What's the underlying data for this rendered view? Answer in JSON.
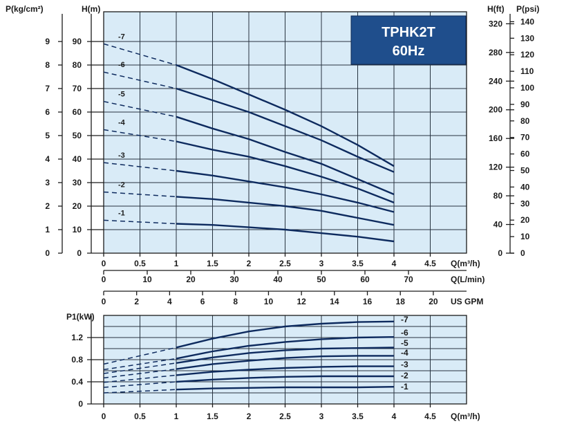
{
  "title_box": {
    "line1": "TPHK2T",
    "line2": "60Hz",
    "bg": "#1f4e8c"
  },
  "colors": {
    "plot_bg": "#d9ebf7",
    "curve": "#0d2a5e"
  },
  "chart_data": [
    {
      "type": "line",
      "name": "head_curve",
      "labels": {
        "left_outer": "P(kg/cm²)",
        "left_inner": "H(m)",
        "right_inner": "H(ft)",
        "right_outer": "P(psi)"
      },
      "ylim": [
        0,
        95
      ],
      "xlim": [
        0,
        5
      ],
      "yticks": [
        0,
        10,
        20,
        30,
        40,
        50,
        60,
        70,
        80,
        90
      ],
      "yticks_kg": [
        "0",
        "1",
        "2",
        "3",
        "4",
        "5",
        "6",
        "7",
        "8",
        "9"
      ],
      "yticks_ft": [
        "0",
        "40",
        "80",
        "120",
        "160",
        "200",
        "240",
        "280",
        "320"
      ],
      "yticks_psi": [
        "0",
        "10",
        "20",
        "30",
        "40",
        "50",
        "60",
        "70",
        "80",
        "90",
        "100",
        "110",
        "120",
        "130",
        "140"
      ],
      "grid": true,
      "series": [
        {
          "name": "-7",
          "dashed": {
            "x": [
              0,
              1
            ],
            "y": [
              89,
              80
            ]
          },
          "solid": {
            "x": [
              1,
              1.5,
              2,
              2.5,
              3,
              3.5,
              4
            ],
            "y": [
              80,
              74,
              67.5,
              61,
              54,
              46,
              37
            ]
          }
        },
        {
          "name": "-6",
          "dashed": {
            "x": [
              0,
              1
            ],
            "y": [
              77,
              70
            ]
          },
          "solid": {
            "x": [
              1,
              1.5,
              2,
              2.5,
              3,
              3.5,
              4
            ],
            "y": [
              70,
              65,
              60,
              54,
              48,
              41,
              34.5
            ]
          }
        },
        {
          "name": "-5",
          "dashed": {
            "x": [
              0,
              1
            ],
            "y": [
              64.5,
              58
            ]
          },
          "solid": {
            "x": [
              1,
              1.5,
              2,
              2.5,
              3,
              3.5,
              4
            ],
            "y": [
              58,
              53,
              48.5,
              43,
              38,
              31.5,
              25
            ]
          }
        },
        {
          "name": "-4",
          "dashed": {
            "x": [
              0,
              1
            ],
            "y": [
              52.5,
              47.5
            ]
          },
          "solid": {
            "x": [
              1,
              1.5,
              2,
              2.5,
              3,
              3.5,
              4
            ],
            "y": [
              47.5,
              44,
              41,
              37,
              32.5,
              27.5,
              21.5
            ]
          }
        },
        {
          "name": "-3",
          "dashed": {
            "x": [
              0,
              1
            ],
            "y": [
              38.5,
              35
            ]
          },
          "solid": {
            "x": [
              1,
              1.5,
              2,
              2.5,
              3,
              3.5,
              4
            ],
            "y": [
              35,
              33,
              30.5,
              28,
              25,
              21.5,
              17.5
            ]
          }
        },
        {
          "name": "-2",
          "dashed": {
            "x": [
              0,
              1
            ],
            "y": [
              26,
              24
            ]
          },
          "solid": {
            "x": [
              1,
              1.5,
              2,
              2.5,
              3,
              3.5,
              4
            ],
            "y": [
              24,
              23,
              21.5,
              20,
              18,
              15,
              12
            ]
          }
        },
        {
          "name": "-1",
          "dashed": {
            "x": [
              0,
              1
            ],
            "y": [
              14,
              12.5
            ]
          },
          "solid": {
            "x": [
              1,
              1.5,
              2,
              2.5,
              3,
              3.5,
              4
            ],
            "y": [
              12.5,
              12,
              11,
              10,
              8.5,
              7,
              5
            ]
          }
        }
      ]
    },
    {
      "type": "line",
      "name": "power_curve",
      "ylabel": "P1(kW)",
      "ylim": [
        0,
        1.6
      ],
      "xlim": [
        0,
        5
      ],
      "yticks": [
        "0",
        "0.4",
        "0.8",
        "1.2"
      ],
      "yticks_values": [
        0,
        0.4,
        0.8,
        1.2
      ],
      "grid": true,
      "series": [
        {
          "name": "-7",
          "dashed": {
            "x": [
              0,
              1
            ],
            "y": [
              0.72,
              1.02
            ]
          },
          "solid": {
            "x": [
              1,
              1.5,
              2,
              2.5,
              3,
              3.5,
              4
            ],
            "y": [
              1.02,
              1.18,
              1.31,
              1.4,
              1.45,
              1.48,
              1.49
            ]
          }
        },
        {
          "name": "-6",
          "dashed": {
            "x": [
              0,
              1
            ],
            "y": [
              0.62,
              0.82
            ]
          },
          "solid": {
            "x": [
              1,
              1.5,
              2,
              2.5,
              3,
              3.5,
              4
            ],
            "y": [
              0.82,
              0.95,
              1.05,
              1.12,
              1.17,
              1.2,
              1.21
            ]
          }
        },
        {
          "name": "-5",
          "dashed": {
            "x": [
              0,
              1
            ],
            "y": [
              0.55,
              0.74
            ]
          },
          "solid": {
            "x": [
              1,
              1.5,
              2,
              2.5,
              3,
              3.5,
              4
            ],
            "y": [
              0.74,
              0.84,
              0.92,
              0.97,
              1.0,
              1.01,
              1.02
            ]
          }
        },
        {
          "name": "-4",
          "dashed": {
            "x": [
              0,
              1
            ],
            "y": [
              0.47,
              0.63
            ]
          },
          "solid": {
            "x": [
              1,
              1.5,
              2,
              2.5,
              3,
              3.5,
              4
            ],
            "y": [
              0.63,
              0.72,
              0.78,
              0.83,
              0.86,
              0.87,
              0.87
            ]
          }
        },
        {
          "name": "-3",
          "dashed": {
            "x": [
              0,
              1
            ],
            "y": [
              0.39,
              0.52
            ]
          },
          "solid": {
            "x": [
              1,
              1.5,
              2,
              2.5,
              3,
              3.5,
              4
            ],
            "y": [
              0.52,
              0.58,
              0.62,
              0.65,
              0.67,
              0.68,
              0.68
            ]
          }
        },
        {
          "name": "-2",
          "dashed": {
            "x": [
              0,
              1
            ],
            "y": [
              0.3,
              0.4
            ]
          },
          "solid": {
            "x": [
              1,
              1.5,
              2,
              2.5,
              3,
              3.5,
              4
            ],
            "y": [
              0.4,
              0.44,
              0.47,
              0.49,
              0.5,
              0.5,
              0.5
            ]
          }
        },
        {
          "name": "-1",
          "dashed": {
            "x": [
              0,
              1
            ],
            "y": [
              0.2,
              0.26
            ]
          },
          "solid": {
            "x": [
              1,
              1.5,
              2,
              2.5,
              3,
              3.5,
              4
            ],
            "y": [
              0.26,
              0.28,
              0.29,
              0.3,
              0.3,
              0.3,
              0.31
            ]
          }
        }
      ]
    }
  ],
  "x_axes": {
    "m3h": {
      "label": "Q(m³/h)",
      "ticks": [
        "0",
        "0.5",
        "1",
        "1.5",
        "2",
        "2.5",
        "3",
        "3.5",
        "4",
        "4.5"
      ],
      "values": [
        0,
        0.5,
        1,
        1.5,
        2,
        2.5,
        3,
        3.5,
        4,
        4.5
      ]
    },
    "lmin": {
      "label": "Q(L/min)",
      "ticks": [
        "0",
        "10",
        "20",
        "30",
        "40",
        "50",
        "60",
        "70"
      ],
      "values": [
        0,
        10,
        20,
        30,
        40,
        50,
        60,
        70
      ]
    },
    "gpm": {
      "label": "US GPM",
      "ticks": [
        "0",
        "2",
        "4",
        "6",
        "8",
        "10",
        "12",
        "14",
        "16",
        "18",
        "20"
      ],
      "values": [
        0,
        2,
        4,
        6,
        8,
        10,
        12,
        14,
        16,
        18,
        20
      ]
    }
  }
}
